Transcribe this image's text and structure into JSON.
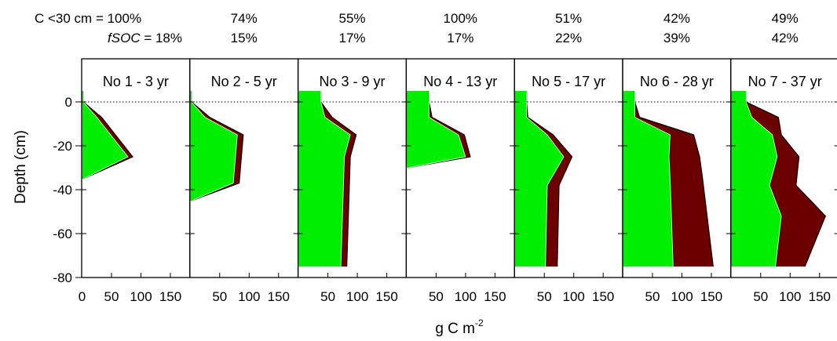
{
  "header": {
    "row1_label": "C <30 cm = 100%",
    "row2_label_italic": "fSOC",
    "row2_label_rest": " = 18%"
  },
  "chart_data": {
    "type": "area",
    "xlabel_base": "g C m",
    "xlabel_sup": "-2",
    "ylabel": "Depth (cm)",
    "ylim": [
      -80,
      15
    ],
    "yticks": [
      0,
      -20,
      -40,
      -60,
      -80
    ],
    "xlim": [
      0,
      160
    ],
    "xticks": [
      0,
      50,
      100,
      150
    ],
    "zero_reference_line": "dotted",
    "colors": {
      "inner": "#00ee00",
      "outer": "#6b0000",
      "outline": "#000000"
    },
    "panels": [
      {
        "title": "No 1 - 3 yr",
        "c30": "",
        "fsoc": "",
        "depth": [
          5,
          0,
          -7,
          -25,
          -35
        ],
        "inner": [
          2,
          2,
          25,
          78,
          2
        ],
        "outer": [
          2,
          2,
          33,
          86,
          2
        ]
      },
      {
        "title": "No 2 - 5 yr",
        "c30": "74%",
        "fsoc": "15%",
        "depth": [
          5,
          0,
          -7,
          -15,
          -37,
          -45
        ],
        "inner": [
          2,
          2,
          25,
          80,
          73,
          2
        ],
        "outer": [
          2,
          2,
          33,
          90,
          83,
          2
        ]
      },
      {
        "title": "No 3 - 9 yr",
        "c30": "55%",
        "fsoc": "17%",
        "depth": [
          5,
          0,
          -7,
          -15,
          -25,
          -75
        ],
        "inner": [
          38,
          38,
          45,
          88,
          78,
          72
        ],
        "outer": [
          38,
          38,
          57,
          98,
          88,
          82
        ]
      },
      {
        "title": "No 4 - 13 yr",
        "c30": "100%",
        "fsoc": "17%",
        "depth": [
          5,
          0,
          -7,
          -15,
          -25,
          -30
        ],
        "inner": [
          38,
          38,
          38,
          88,
          100,
          2
        ],
        "outer": [
          38,
          38,
          43,
          98,
          108,
          2
        ]
      },
      {
        "title": "No 5 - 17 yr",
        "c30": "51%",
        "fsoc": "22%",
        "depth": [
          5,
          0,
          -7,
          -15,
          -25,
          -38,
          -75
        ],
        "inner": [
          20,
          20,
          20,
          55,
          83,
          55,
          52
        ],
        "outer": [
          20,
          20,
          22,
          65,
          97,
          75,
          72
        ]
      },
      {
        "title": "No 6 - 28 yr",
        "c30": "42%",
        "fsoc": "39%",
        "depth": [
          5,
          0,
          -7,
          -15,
          -25,
          -35,
          -75
        ],
        "inner": [
          20,
          20,
          20,
          80,
          78,
          80,
          85
        ],
        "outer": [
          20,
          20,
          28,
          120,
          130,
          135,
          153
        ]
      },
      {
        "title": "No 7 - 37 yr",
        "c30": "49%",
        "fsoc": "42%",
        "depth": [
          5,
          0,
          -7,
          -15,
          -25,
          -38,
          -52,
          -75
        ],
        "inner": [
          25,
          25,
          35,
          70,
          78,
          65,
          85,
          75
        ],
        "outer": [
          25,
          25,
          80,
          85,
          115,
          110,
          160,
          125
        ]
      }
    ]
  }
}
